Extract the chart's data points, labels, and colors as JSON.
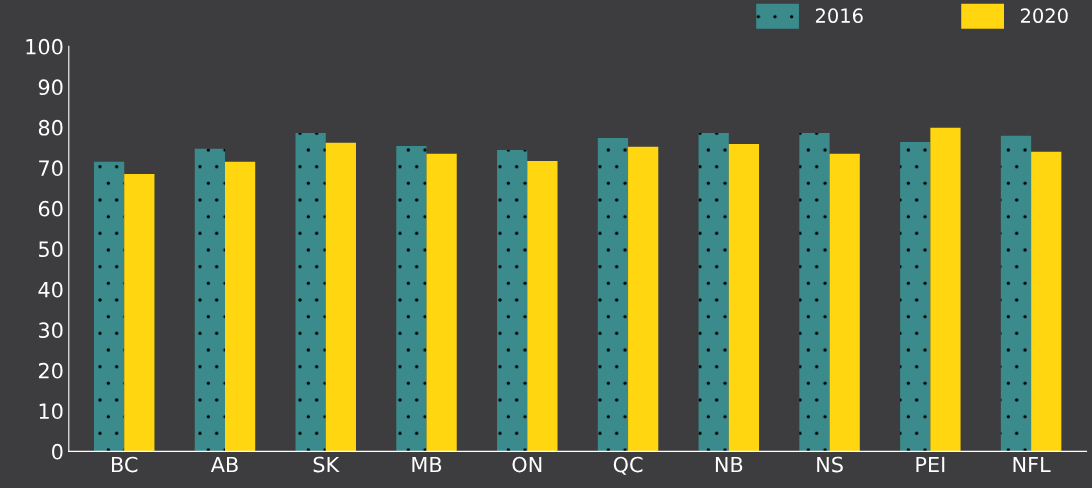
{
  "chart_data": {
    "type": "bar",
    "categories": [
      "BC",
      "AB",
      "SK",
      "MB",
      "ON",
      "QC",
      "NB",
      "NS",
      "PEI",
      "NFL"
    ],
    "series": [
      {
        "name": "2016",
        "color": "#3b8a8c",
        "values": [
          71.5,
          74.7,
          78.6,
          75.4,
          74.4,
          77.4,
          78.6,
          78.6,
          76.4,
          77.9
        ]
      },
      {
        "name": "2020",
        "color": "#ffd60f",
        "values": [
          68.5,
          71.5,
          76.2,
          73.5,
          71.7,
          75.2,
          75.9,
          73.5,
          79.9,
          74.0
        ]
      }
    ],
    "ylim": [
      0,
      100
    ],
    "yticks": [
      0,
      10,
      20,
      30,
      40,
      50,
      60,
      70,
      80,
      90,
      100
    ],
    "grid": false,
    "legend": "top right"
  }
}
